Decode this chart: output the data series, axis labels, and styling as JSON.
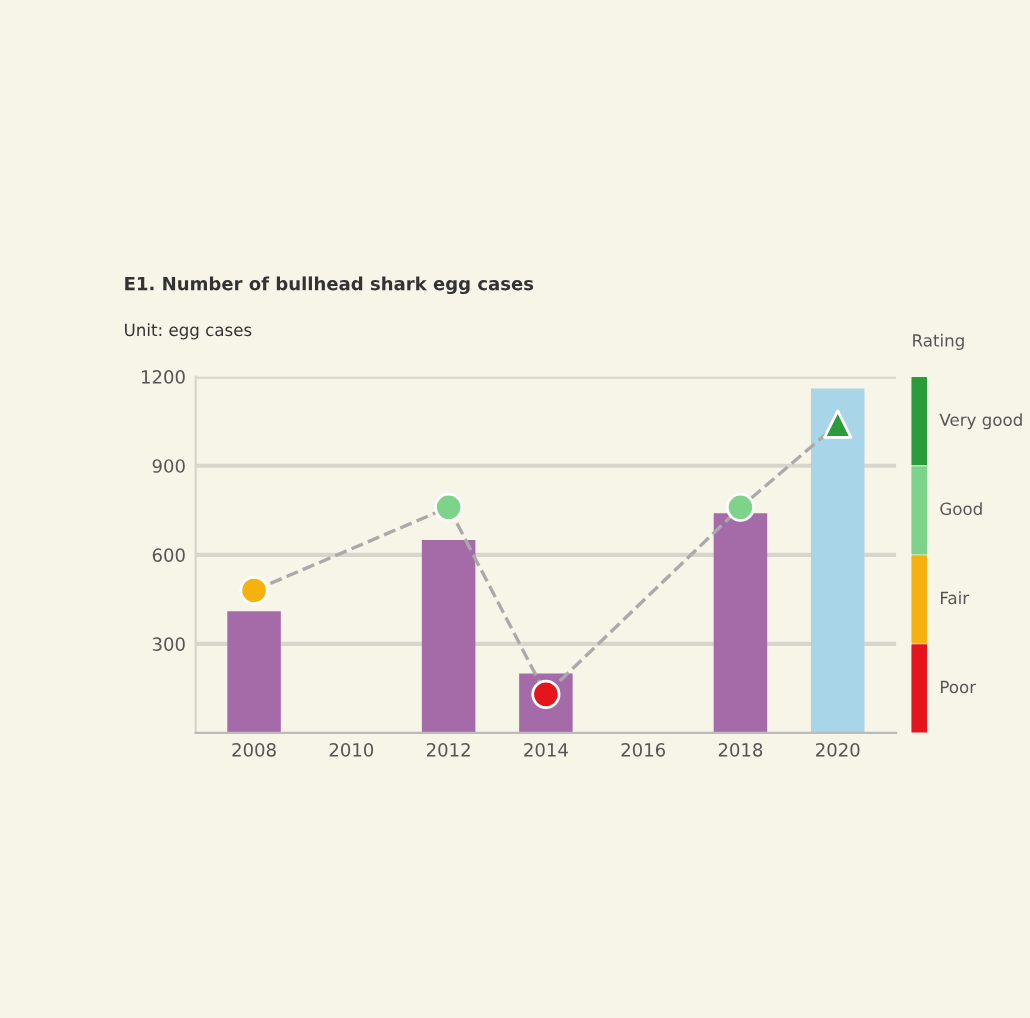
{
  "chart_data": {
    "type": "bar",
    "title": "E1. Number of bullhead shark egg cases",
    "subtitle": "Unit: egg cases",
    "legend_title": "Rating",
    "categories": [
      "2008",
      "2010",
      "2012",
      "2014",
      "2016",
      "2018",
      "2020"
    ],
    "series": [
      {
        "colors": [
          "#a46ba8",
          "#a46ba8",
          "#a46ba8",
          "#a46ba8",
          "#a46ba8",
          "#a46ba8",
          "#a9d5e8"
        ],
        "values": [
          410,
          null,
          650,
          200,
          null,
          740,
          1160
        ]
      },
      {
        "type": "line",
        "color": "#aaaaaa",
        "line_style": "dashed",
        "marker": "none",
        "values": [
          480,
          null,
          760,
          130,
          null,
          760,
          1040
        ]
      },
      {
        "type": "scatter",
        "name": "Very good",
        "color": "#2a9c3a",
        "marker": "triangle",
        "values": [
          null,
          null,
          null,
          null,
          null,
          null,
          1040
        ]
      },
      {
        "type": "scatter",
        "name": "Good",
        "color": "#7dd38a",
        "marker": "circle",
        "values": [
          null,
          null,
          760,
          null,
          null,
          760,
          null
        ]
      },
      {
        "type": "scatter",
        "name": "Fair",
        "color": "#f5b20f",
        "marker": "circle",
        "values": [
          480,
          null,
          null,
          null,
          null,
          null,
          null
        ]
      },
      {
        "type": "scatter",
        "name": "Poor",
        "color": "#e5151e",
        "marker": "circle",
        "values": [
          null,
          null,
          null,
          130,
          null,
          null,
          null
        ]
      }
    ],
    "ylim": [
      0,
      1200
    ],
    "yticks": [
      300,
      600,
      900,
      1200
    ],
    "grid": "y",
    "legend": "right"
  }
}
